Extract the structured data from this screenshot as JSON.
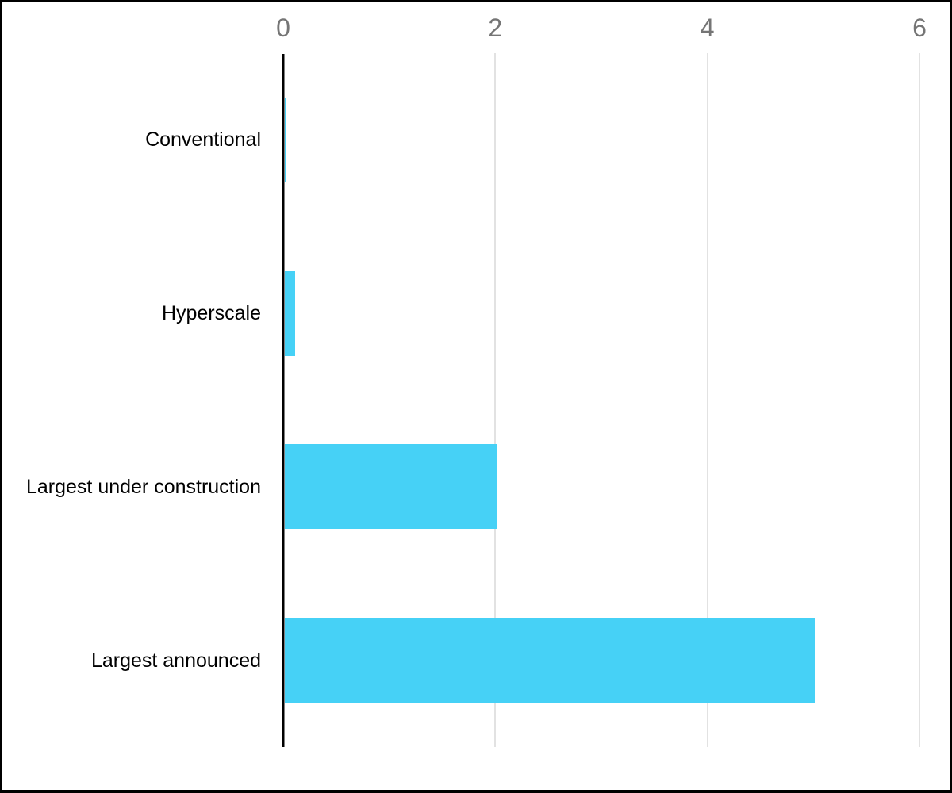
{
  "chart_data": {
    "type": "bar",
    "orientation": "horizontal",
    "title": "",
    "xlabel": "",
    "ylabel": "",
    "categories": [
      "Conventional",
      "Hyperscale",
      "Largest under construction",
      "Largest announced"
    ],
    "values": [
      0.02,
      0.1,
      2,
      5
    ],
    "xlim": [
      0,
      6
    ],
    "x_ticks": [
      "0",
      "2",
      "4",
      "6"
    ],
    "x_tick_values": [
      0,
      2,
      4,
      6
    ],
    "tick_side": "top",
    "grid": true,
    "legend": "none",
    "bar_color": "#46d1f6",
    "axis_line_color": "#000000",
    "gridline_color": "#e2e2e2",
    "tick_label_color": "#757575",
    "category_label_color": "#000000",
    "background_color": "#ffffff",
    "frame_color": "#000000"
  }
}
